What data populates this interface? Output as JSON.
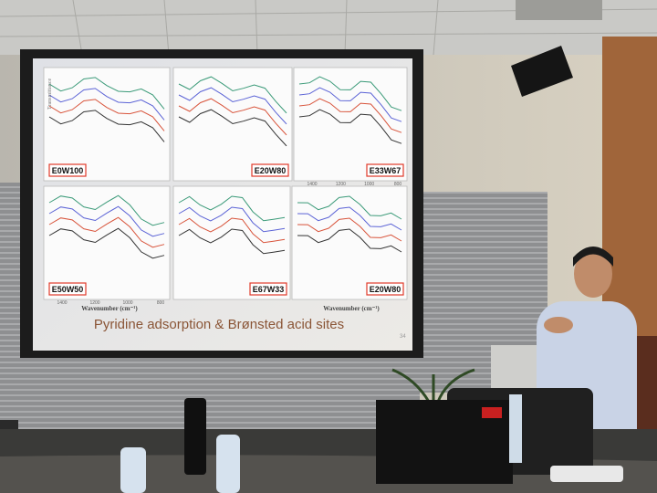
{
  "slide": {
    "title": "Pyridine adsorption & Brønsted acid sites",
    "page_number": "34",
    "y_axis_label": "Transmittance",
    "x_axis_label": "Wavenumber (cm⁻¹)",
    "panels": [
      {
        "label": "E0W100"
      },
      {
        "label": "E20W80"
      },
      {
        "label": "E33W67"
      },
      {
        "label": "E50W50"
      },
      {
        "label": "E67W33"
      },
      {
        "label": "E20W80"
      }
    ],
    "x_ticks": [
      "1400",
      "1200",
      "1000",
      "800"
    ]
  }
}
